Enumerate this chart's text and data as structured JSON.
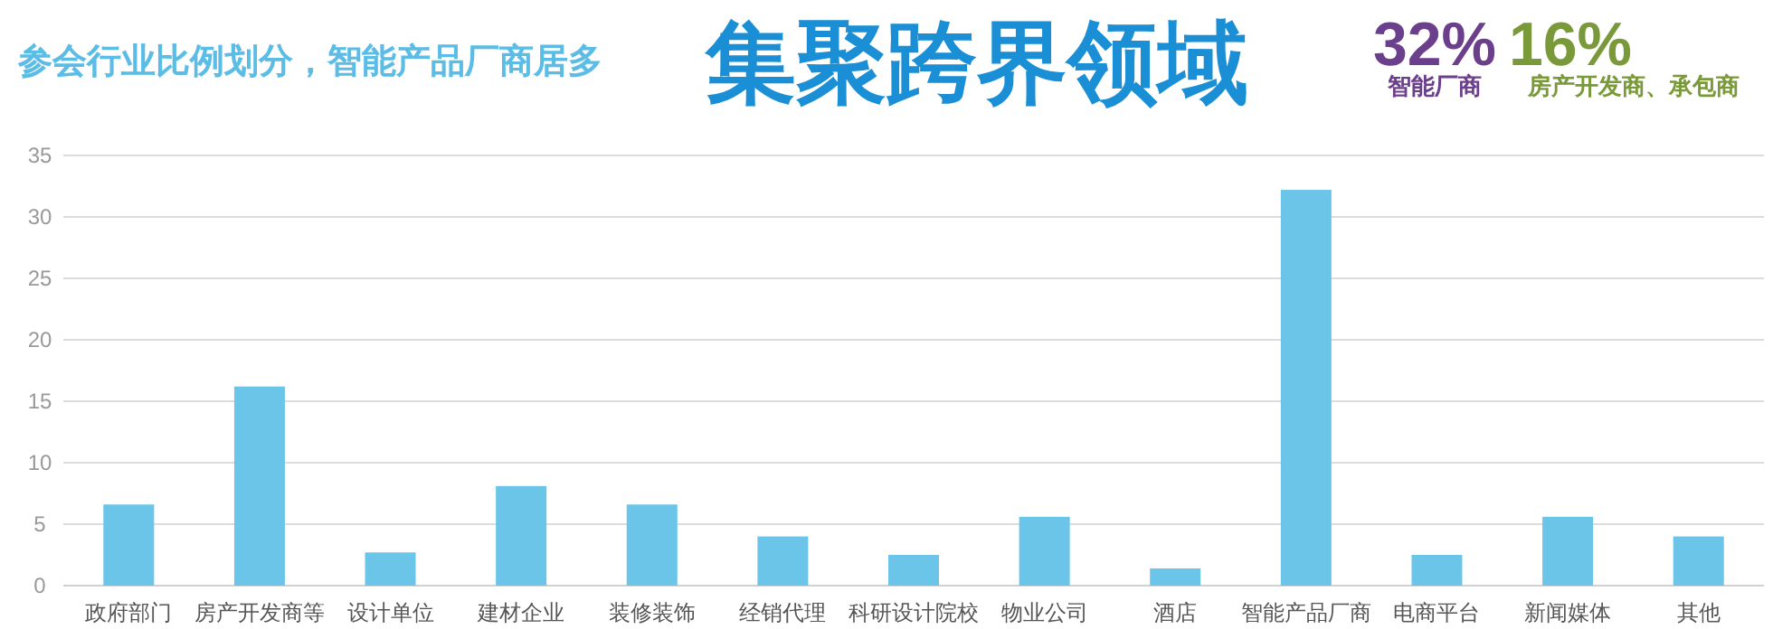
{
  "chart_data": {
    "type": "bar",
    "title": "集聚跨界领域",
    "subtitle": "参会行业比例划分，智能产品厂商居多",
    "annotations": [
      "32%",
      "智能厂商",
      "16%",
      "房产开发商、承包商"
    ],
    "categories": [
      "政府部门",
      "房产开发商等",
      "设计单位",
      "建材企业",
      "装修装饰",
      "经销代理",
      "科研设计院校",
      "物业公司",
      "酒店",
      "智能产品厂商",
      "电商平台",
      "新闻媒体",
      "其他"
    ],
    "values": [
      6.6,
      16.2,
      2.7,
      8.1,
      6.6,
      4.0,
      2.5,
      5.6,
      1.4,
      32.2,
      2.5,
      5.6,
      4.0
    ],
    "color": "#6bc5e8",
    "ylim": [
      0,
      35
    ],
    "yticks": [
      0,
      5,
      10,
      15,
      20,
      25,
      30,
      35
    ],
    "grid": "y"
  }
}
